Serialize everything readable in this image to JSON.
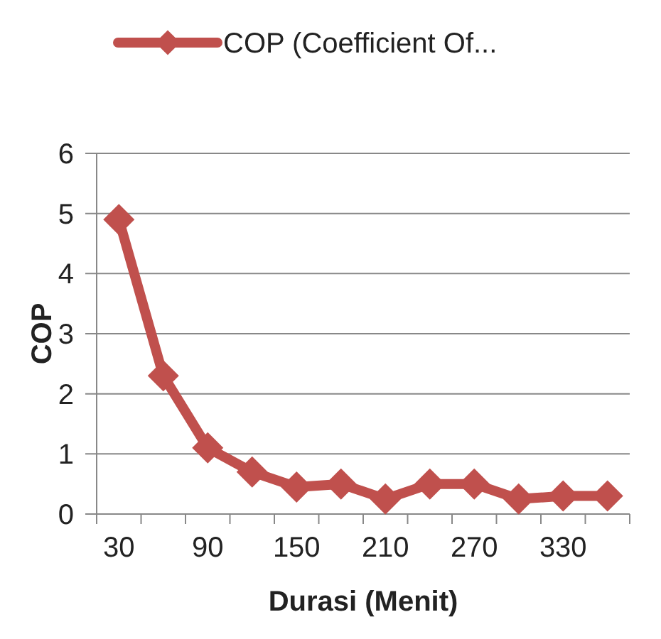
{
  "chart_data": {
    "type": "line",
    "xlabel": "Durasi (Menit)",
    "ylabel": "COP",
    "categories": [
      "30",
      null,
      "90",
      null,
      "150",
      null,
      "210",
      null,
      "270",
      null,
      "330",
      null
    ],
    "series": [
      {
        "name": "COP (Coefficient Of...",
        "color": "#c0504d",
        "values": [
          4.9,
          2.3,
          1.1,
          0.7,
          0.45,
          0.5,
          0.25,
          0.5,
          0.5,
          0.25,
          0.3,
          0.3
        ]
      }
    ],
    "ylim": [
      0,
      6
    ],
    "yticks": [
      0,
      1,
      2,
      3,
      4,
      5,
      6
    ],
    "grid": "y",
    "legend": "top",
    "marker": "diamond",
    "line_style": "solid"
  }
}
